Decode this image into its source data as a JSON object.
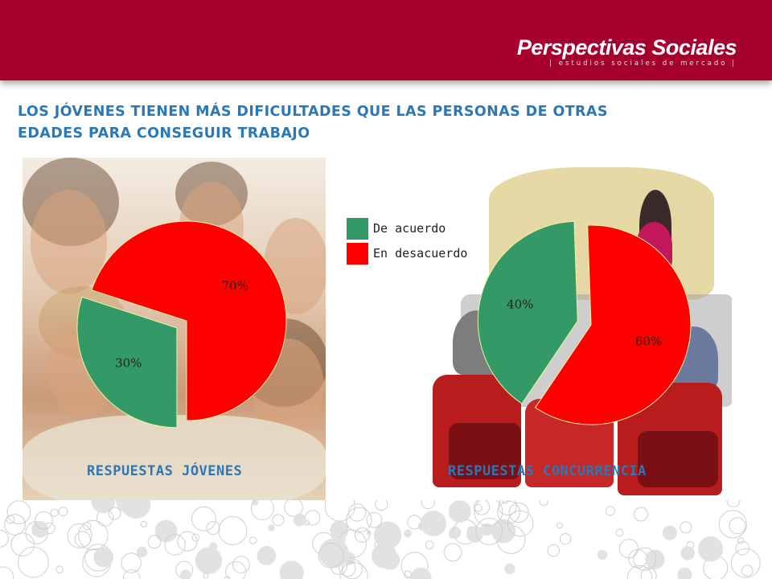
{
  "header": {
    "brand_name": "Perspectivas Sociales",
    "brand_tagline": "| estudios sociales de mercado |",
    "color": "#a6002e"
  },
  "title": {
    "line1": "LOS JÓVENES TIENEN MÁS DIFICULTADES QUE LAS PERSONAS DE OTRAS",
    "line2": "EDADES PARA CONSEGUIR TRABAJO"
  },
  "legend": [
    {
      "label": "De acuerdo",
      "color": "#339966"
    },
    {
      "label": "En desacuerdo",
      "color": "#ff0000"
    }
  ],
  "chart_data": [
    {
      "type": "pie",
      "title": "RESPUESTAS JÓVENES",
      "categories": [
        "De acuerdo",
        "En desacuerdo"
      ],
      "values": [
        30,
        70
      ],
      "labels": [
        "30%",
        "70%"
      ],
      "colors": [
        "#339966",
        "#ff0000"
      ],
      "exploded": true
    },
    {
      "type": "pie",
      "title": "RESPUESTAS CONCURRENCIA",
      "categories": [
        "De acuerdo",
        "En desacuerdo"
      ],
      "values": [
        40,
        60
      ],
      "labels": [
        "40%",
        "60%"
      ],
      "colors": [
        "#339966",
        "#ff0000"
      ],
      "exploded": true
    }
  ]
}
